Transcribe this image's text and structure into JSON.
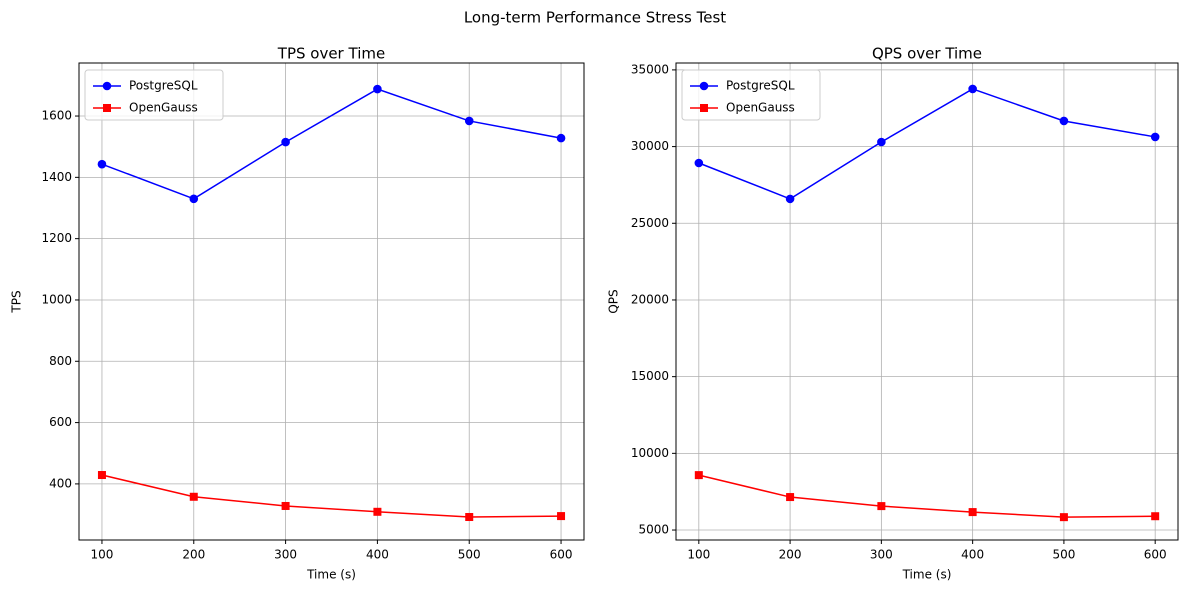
{
  "title": "Long-term Performance Stress Test",
  "chart_data": [
    {
      "type": "line",
      "title": "TPS over Time",
      "xlabel": "Time (s)",
      "ylabel": "TPS",
      "x": [
        100,
        200,
        300,
        400,
        500,
        600
      ],
      "series": [
        {
          "name": "PostgreSQL",
          "color": "#0000ff",
          "marker": "circle",
          "values": [
            1443,
            1330,
            1515,
            1688,
            1584,
            1528
          ]
        },
        {
          "name": "OpenGauss",
          "color": "#ff0000",
          "marker": "square",
          "values": [
            429,
            358,
            328,
            309,
            292,
            295
          ]
        }
      ],
      "xlim": [
        75,
        625
      ],
      "xticks": [
        100,
        200,
        300,
        400,
        500,
        600
      ],
      "ylim": [
        217,
        1773
      ],
      "yticks": [
        400,
        600,
        800,
        1000,
        1200,
        1400,
        1600
      ],
      "grid": true,
      "legend": "upper-left"
    },
    {
      "type": "line",
      "title": "QPS over Time",
      "xlabel": "Time (s)",
      "ylabel": "QPS",
      "x": [
        100,
        200,
        300,
        400,
        500,
        600
      ],
      "series": [
        {
          "name": "PostgreSQL",
          "color": "#0000ff",
          "marker": "circle",
          "values": [
            28930,
            26590,
            30300,
            33760,
            31670,
            30630
          ]
        },
        {
          "name": "OpenGauss",
          "color": "#ff0000",
          "marker": "square",
          "values": [
            8580,
            7150,
            6560,
            6170,
            5840,
            5900
          ]
        }
      ],
      "xlim": [
        75,
        625
      ],
      "xticks": [
        100,
        200,
        300,
        400,
        500,
        600
      ],
      "ylim": [
        4350,
        35450
      ],
      "yticks": [
        5000,
        10000,
        15000,
        20000,
        25000,
        30000,
        35000
      ],
      "grid": true,
      "legend": "upper-left"
    }
  ]
}
